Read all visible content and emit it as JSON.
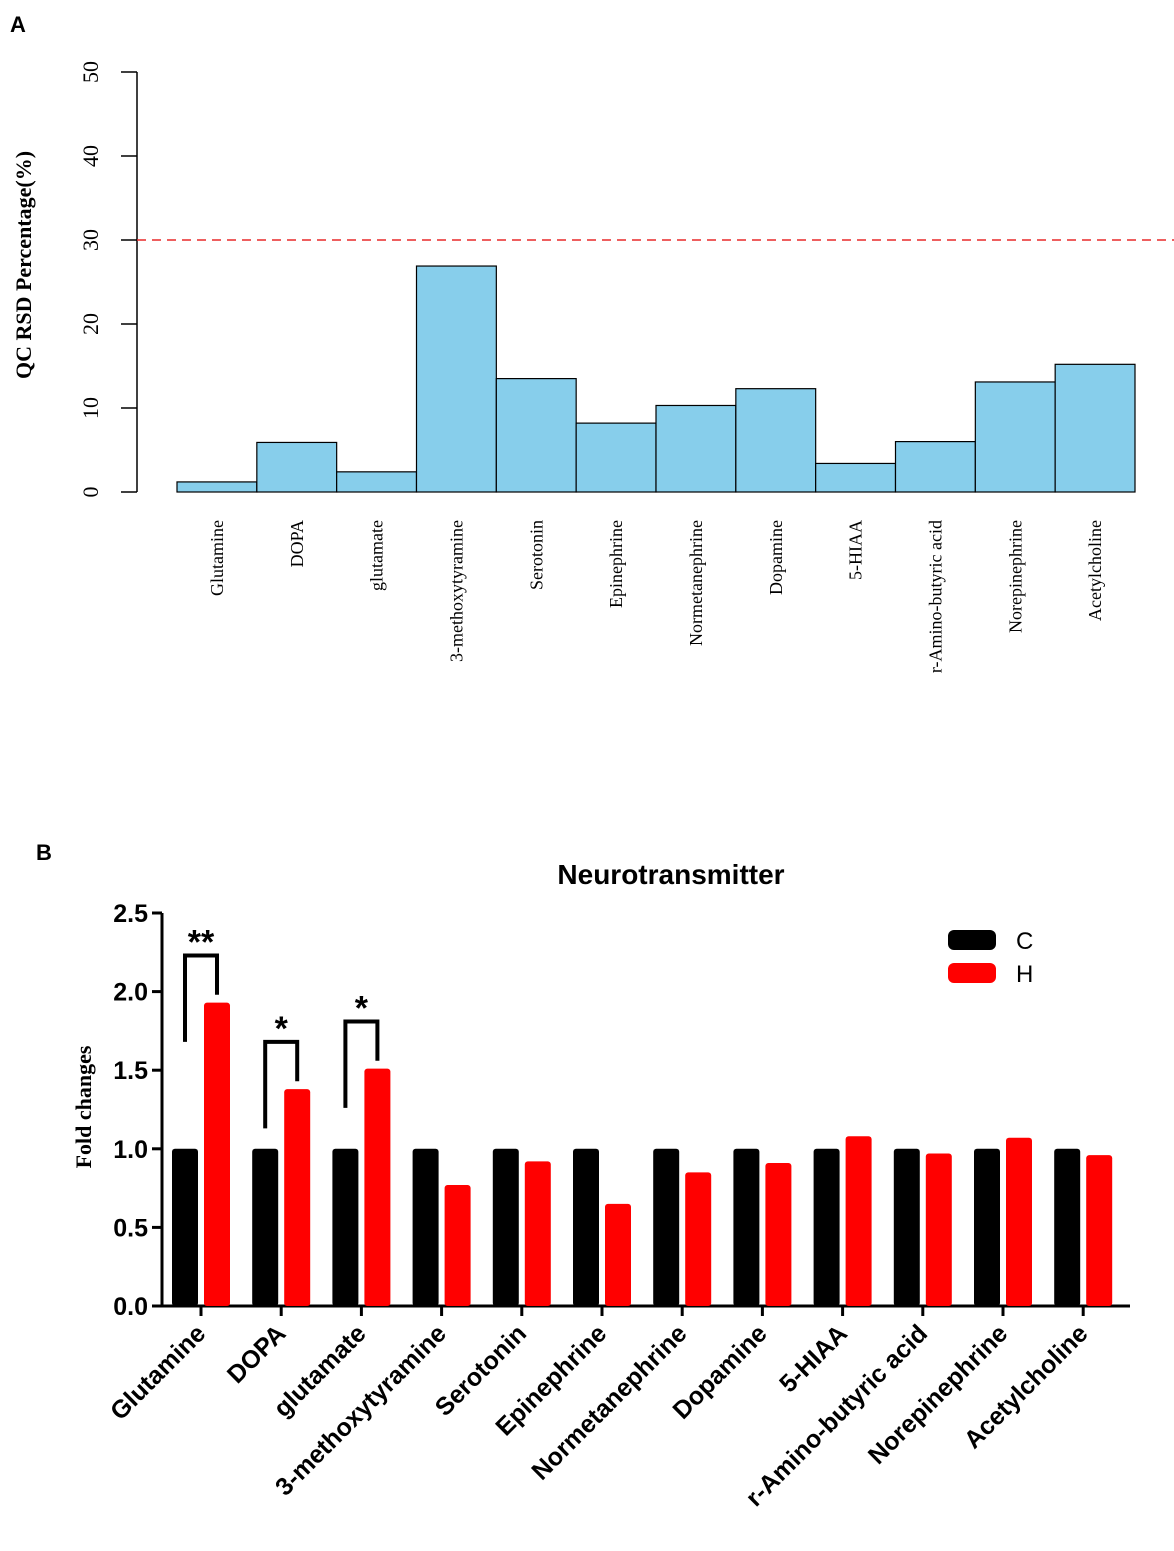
{
  "chart_data": [
    {
      "panel": "A",
      "type": "bar",
      "title": "",
      "xlabel": "",
      "ylabel": "QC RSD Percentage(%)",
      "ylim": [
        0,
        50
      ],
      "yticks": [
        "0",
        "10",
        "20",
        "30",
        "40",
        "50"
      ],
      "categories": [
        "Glutamine",
        "DOPA",
        "glutamate",
        "3-methoxytyramine",
        "Serotonin",
        "Epinephrine",
        "Normetanephrine",
        "Dopamine",
        "5-HIAA",
        "r-Amino-butyric acid",
        "Norepinephrine",
        "Acetylcholine"
      ],
      "values": [
        1.2,
        5.9,
        2.4,
        26.9,
        13.5,
        8.2,
        10.3,
        12.3,
        3.4,
        6.0,
        13.1,
        15.2
      ],
      "threshold_line": 30,
      "colors": {
        "bar": "#87ceeb",
        "threshold": "#e8282a"
      }
    },
    {
      "panel": "B",
      "type": "bar",
      "title": "Neurotransmitter",
      "xlabel": "",
      "ylabel": "Fold changes",
      "ylim": [
        0,
        2.5
      ],
      "yticks": [
        "0.0",
        "0.5",
        "1.0",
        "1.5",
        "2.0",
        "2.5"
      ],
      "categories": [
        "Glutamine",
        "DOPA",
        "glutamate",
        "3-methoxytyramine",
        "Serotonin",
        "Epinephrine",
        "Normetanephrine",
        "Dopamine",
        "5-HIAA",
        "r-Amino-butyric acid",
        "Norepinephrine",
        "Acetylcholine"
      ],
      "series": [
        {
          "name": "C",
          "color": "#000000",
          "values": [
            1.0,
            1.0,
            1.0,
            1.0,
            1.0,
            1.0,
            1.0,
            1.0,
            1.0,
            1.0,
            1.0,
            1.0
          ]
        },
        {
          "name": "H",
          "color": "#ff0000",
          "values": [
            1.93,
            1.38,
            1.51,
            0.77,
            0.92,
            0.65,
            0.85,
            0.91,
            1.08,
            0.97,
            1.07,
            0.96
          ]
        }
      ],
      "significance": [
        {
          "category": "Glutamine",
          "label": "**"
        },
        {
          "category": "DOPA",
          "label": "*"
        },
        {
          "category": "glutamate",
          "label": "*"
        }
      ],
      "legend_position": "top-right"
    }
  ],
  "panel_labels": {
    "a": "A",
    "b": "B"
  }
}
